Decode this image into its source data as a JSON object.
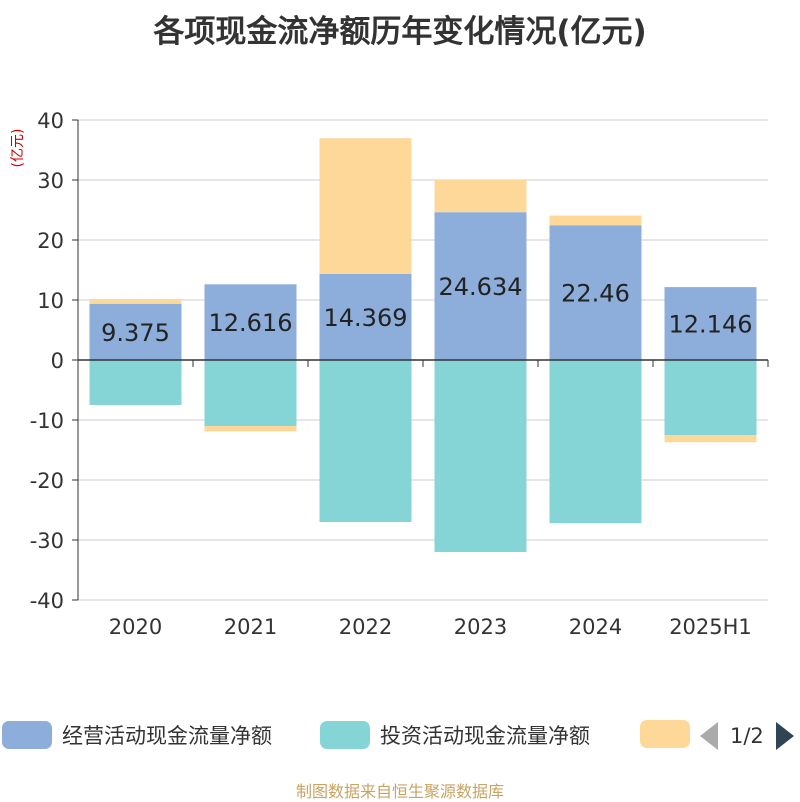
{
  "title": "各项现金流净额历年变化情况(亿元)",
  "footer": "制图数据来自恒生聚源数据库",
  "colors": {
    "operating": "#8dadda",
    "investing": "#85d5d7",
    "financing": "#fdd898",
    "axis": "#333333",
    "grid": "#cccccc",
    "unit": "#cc0000"
  },
  "chart_data": {
    "type": "bar",
    "stacked": true,
    "categories": [
      "2020",
      "2021",
      "2022",
      "2023",
      "2024",
      "2025H1"
    ],
    "ylabel": "(亿元)",
    "ylim": [
      -40,
      40
    ],
    "yticks": [
      40,
      30,
      20,
      10,
      0,
      -10,
      -20,
      -30,
      -40
    ],
    "grid": true,
    "legend_position": "bottom",
    "series": [
      {
        "name": "经营活动现金流量净额",
        "values": [
          9.375,
          12.616,
          14.369,
          24.634,
          22.46,
          12.146
        ],
        "data_labels": [
          "9.375",
          "12.616",
          "14.369",
          "24.634",
          "22.46",
          "12.146"
        ]
      },
      {
        "name": "投资活动现金流量净额",
        "values": [
          -7.5,
          -11,
          -27,
          -32,
          -27.2,
          -12.5
        ]
      },
      {
        "values": [
          0.8,
          -0.9,
          22.6,
          5.4,
          1.6,
          -1.2
        ]
      }
    ]
  },
  "legend": {
    "items": [
      "经营活动现金流量净额",
      "投资活动现金流量净额",
      ""
    ],
    "page": "1/2"
  }
}
